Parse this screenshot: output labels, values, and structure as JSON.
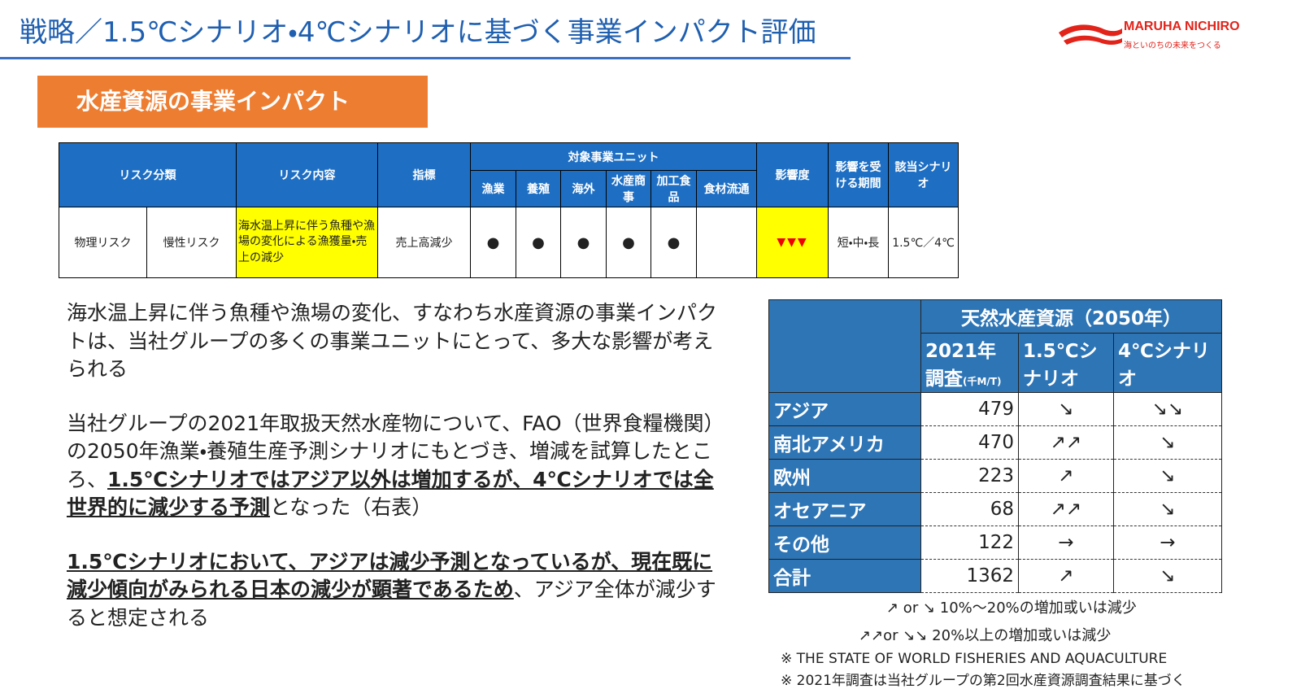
{
  "header": {
    "title": "戦略／1.5℃シナリオ・4℃シナリオに基づく事業インパクト評価"
  },
  "logo": {
    "name": "MARUHA NICHIRO",
    "tagline": "海といのちの未来をつくる"
  },
  "section_label": "水産資源の事業インパクト",
  "risk_table": {
    "headers": {
      "category": "リスク分類",
      "content": "リスク内容",
      "indicator": "指標",
      "units_group": "対象事業ユニット",
      "impact": "影響度",
      "period": "影響を受ける期間",
      "scenario": "該当シナリオ"
    },
    "units": [
      "漁業",
      "養殖",
      "海外",
      "水産商事",
      "加工食品",
      "食材流通"
    ],
    "row": {
      "category": "物理リスク",
      "subcategory": "慢性リスク",
      "content": "海水温上昇に伴う魚種や漁場の変化による漁獲量・売上の減少",
      "indicator": "売上高減少",
      "unit_marks": [
        "●",
        "●",
        "●",
        "●",
        "●",
        null
      ],
      "impact": "▼▼▼",
      "period": "短・中・長",
      "scenario": "1.5℃／4℃"
    }
  },
  "paragraphs": [
    {
      "segments": [
        {
          "text": "海水温上昇に伴う魚種や漁場の変化、すなわち水産資源の事業インパクトは、当社グループの多くの事業ユニットにとって、多大な影響が考えられる",
          "bold": false
        }
      ]
    },
    {
      "segments": [
        {
          "text": "当社グループの2021年取扱天然水産物について、FAO（世界食糧機関）の2050年漁業・養殖生産予測シナリオにもとづき、増減を試算したところ、",
          "bold": false
        },
        {
          "text": "1.5℃シナリオではアジア以外は増加するが、4℃シナリオでは全世界的に減少する予測",
          "bold": true
        },
        {
          "text": "となった（右表）",
          "bold": false
        }
      ]
    },
    {
      "segments": [
        {
          "text": "1.5℃シナリオにおいて、アジアは減少予測となっているが、現在既に減少傾向がみられる日本の減少が顕著であるため",
          "bold": true
        },
        {
          "text": "、アジア全体が減少すると想定される",
          "bold": false
        }
      ]
    }
  ],
  "resource_table": {
    "title": "天然水産資源（2050年）",
    "columns": [
      {
        "label": "2021年調査",
        "unit": "(千M/T)"
      },
      {
        "label": "1.5℃シナリオ"
      },
      {
        "label": "4℃シナリオ"
      }
    ],
    "rows": [
      [
        "アジア",
        479,
        "↘",
        "↘↘"
      ],
      [
        "南北アメリカ",
        470,
        "↗↗",
        "↘"
      ],
      [
        "欧州",
        223,
        "↗",
        "↘"
      ],
      [
        "オセアニア",
        68,
        "↗↗",
        "↘"
      ],
      [
        "その他",
        122,
        "→",
        "→"
      ],
      [
        "合計",
        1362,
        "↗",
        "↘"
      ]
    ]
  },
  "legend_notes": [
    "↗ or ↘ 10%～20%の増加或いは減少",
    "↗↗or ↘↘ 20%以上の増加或いは減少"
  ],
  "footnotes": [
    "※ THE STATE OF WORLD FISHERIES AND AQUACULTURE",
    "※ 2021年調査は当社グループの第2回水産資源調査結果に基づく"
  ]
}
